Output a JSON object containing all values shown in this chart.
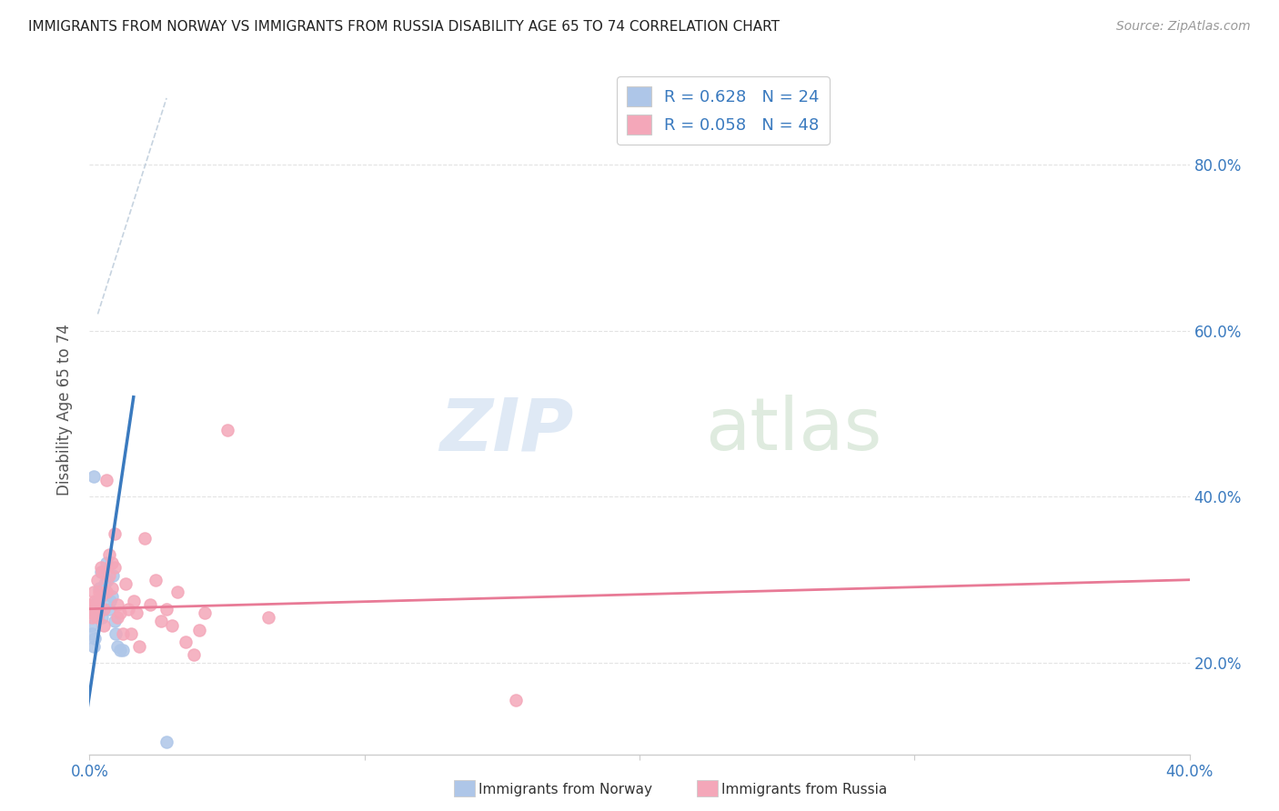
{
  "title": "IMMIGRANTS FROM NORWAY VS IMMIGRANTS FROM RUSSIA DISABILITY AGE 65 TO 74 CORRELATION CHART",
  "source": "Source: ZipAtlas.com",
  "ylabel": "Disability Age 65 to 74",
  "legend_norway_R": "0.628",
  "legend_norway_N": "24",
  "legend_russia_R": "0.058",
  "legend_russia_N": "48",
  "norway_color": "#aec6e8",
  "russia_color": "#f4a7b9",
  "norway_line_color": "#3a7abf",
  "russia_line_color": "#e87a96",
  "legend_text_color": "#3a7abf",
  "norway_scatter_x": [
    0.0005,
    0.001,
    0.0015,
    0.002,
    0.0025,
    0.003,
    0.0035,
    0.004,
    0.0045,
    0.005,
    0.0055,
    0.006,
    0.0065,
    0.007,
    0.0075,
    0.008,
    0.0085,
    0.009,
    0.0095,
    0.01,
    0.011,
    0.012,
    0.028,
    0.0015
  ],
  "norway_scatter_y": [
    0.245,
    0.235,
    0.22,
    0.23,
    0.26,
    0.275,
    0.29,
    0.31,
    0.255,
    0.285,
    0.295,
    0.32,
    0.3,
    0.265,
    0.275,
    0.28,
    0.305,
    0.25,
    0.235,
    0.22,
    0.215,
    0.215,
    0.105,
    0.425
  ],
  "russia_scatter_x": [
    0.0003,
    0.0005,
    0.001,
    0.001,
    0.0015,
    0.002,
    0.002,
    0.0025,
    0.003,
    0.003,
    0.0035,
    0.004,
    0.004,
    0.0045,
    0.005,
    0.005,
    0.006,
    0.006,
    0.007,
    0.007,
    0.008,
    0.008,
    0.009,
    0.009,
    0.01,
    0.01,
    0.011,
    0.012,
    0.013,
    0.014,
    0.015,
    0.016,
    0.017,
    0.018,
    0.02,
    0.022,
    0.024,
    0.026,
    0.028,
    0.03,
    0.032,
    0.035,
    0.038,
    0.04,
    0.042,
    0.05,
    0.065,
    0.155
  ],
  "russia_scatter_y": [
    0.27,
    0.265,
    0.26,
    0.255,
    0.285,
    0.275,
    0.265,
    0.27,
    0.255,
    0.3,
    0.285,
    0.315,
    0.28,
    0.31,
    0.245,
    0.265,
    0.42,
    0.285,
    0.33,
    0.305,
    0.32,
    0.29,
    0.355,
    0.315,
    0.255,
    0.27,
    0.26,
    0.235,
    0.295,
    0.265,
    0.235,
    0.275,
    0.26,
    0.22,
    0.35,
    0.27,
    0.3,
    0.25,
    0.265,
    0.245,
    0.285,
    0.225,
    0.21,
    0.24,
    0.26,
    0.48,
    0.255,
    0.155
  ],
  "norway_line_x": [
    -0.001,
    0.016
  ],
  "norway_line_y": [
    0.14,
    0.52
  ],
  "russia_line_x": [
    0.0,
    0.4
  ],
  "russia_line_y": [
    0.265,
    0.3
  ],
  "diag_line_x": [
    0.003,
    0.028
  ],
  "diag_line_y": [
    0.62,
    0.88
  ],
  "xlim": [
    0.0,
    0.4
  ],
  "ylim": [
    0.09,
    0.92
  ],
  "x_ticks": [
    0.0,
    0.1,
    0.2,
    0.3,
    0.4
  ],
  "x_tick_labels": [
    "0.0%",
    "",
    "",
    "",
    "40.0%"
  ],
  "y_ticks": [
    0.2,
    0.4,
    0.6,
    0.8
  ],
  "y_tick_labels_right": [
    "20.0%",
    "40.0%",
    "60.0%",
    "80.0%"
  ],
  "background_color": "#ffffff",
  "grid_color": "#e0e0e0"
}
